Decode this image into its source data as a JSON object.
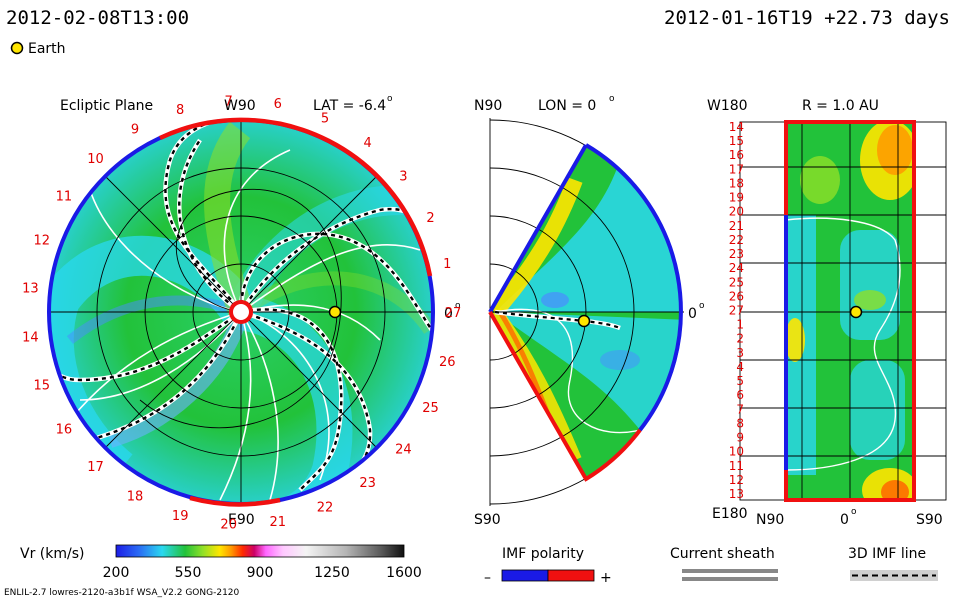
{
  "header": {
    "current_time": "2012-02-08T13:00",
    "run_time": "2012-01-16T19 +22.73 days"
  },
  "legend": {
    "earth_label": "Earth"
  },
  "panels": {
    "ecliptic": {
      "title": "Ecliptic Plane",
      "top_label": "W90",
      "bottom_label": "E90",
      "right_label": "0",
      "lat_label": "LAT = -6.4",
      "sector_numbers": [
        "19",
        "20",
        "21",
        "22",
        "23",
        "24",
        "25",
        "26",
        "27",
        "1",
        "2",
        "3",
        "4",
        "5",
        "6",
        "7",
        "8",
        "9",
        "10",
        "11",
        "12",
        "13",
        "14",
        "15",
        "16",
        "17",
        "18"
      ]
    },
    "meridional": {
      "top_label": "N90",
      "bottom_label": "S90",
      "right_label": "0",
      "lon_label": "LON = 0"
    },
    "radial": {
      "title": "R = 1.0 AU",
      "top_left_label": "W180",
      "bottom_left_label": "E180",
      "x_ticks": [
        "N90",
        "0",
        "S90"
      ],
      "y_ticks": [
        "14",
        "15",
        "16",
        "17",
        "18",
        "19",
        "20",
        "21",
        "22",
        "23",
        "24",
        "25",
        "26",
        "27",
        "1",
        "2",
        "3",
        "4",
        "5",
        "6",
        "7",
        "8",
        "9",
        "10",
        "11",
        "12",
        "13"
      ]
    }
  },
  "colorbar": {
    "label": "Vr (km/s)",
    "ticks": [
      "200",
      "550",
      "900",
      "1250",
      "1600"
    ],
    "range": [
      200,
      1600
    ]
  },
  "keys": {
    "imf_polarity": "IMF polarity",
    "imf_minus": "–",
    "imf_plus": "+",
    "current_sheath": "Current sheath",
    "imf_line": "3D IMF line"
  },
  "footer": {
    "model_info": "ENLIL-2.7 lowres-2120-a3b1f WSA_V2.2 GONG-2120"
  },
  "chart_data": {
    "type": "heatmap",
    "quantity": "Vr (km/s)",
    "value_range": [
      200,
      1600
    ],
    "earth_radius_au": 1.0,
    "colors": {
      "polarity_negative": "#1a1ae6",
      "polarity_positive": "#f01010",
      "earth": "#ffe600",
      "background_green": "#22c23a",
      "slow_cyan": "#2ad8f0"
    }
  }
}
